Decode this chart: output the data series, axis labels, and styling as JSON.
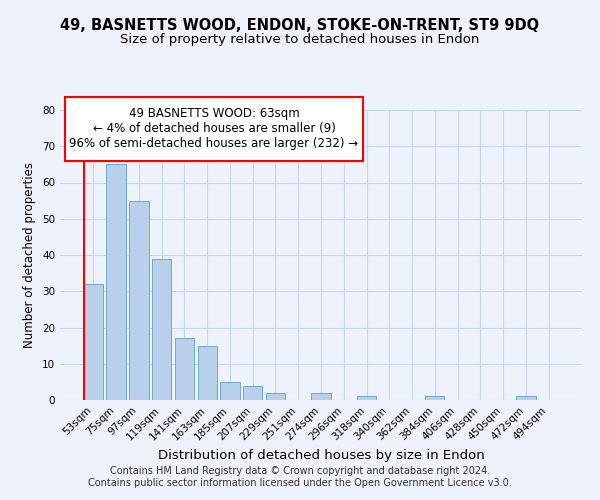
{
  "title": "49, BASNETTS WOOD, ENDON, STOKE-ON-TRENT, ST9 9DQ",
  "subtitle": "Size of property relative to detached houses in Endon",
  "xlabel": "Distribution of detached houses by size in Endon",
  "ylabel": "Number of detached properties",
  "bar_labels": [
    "53sqm",
    "75sqm",
    "97sqm",
    "119sqm",
    "141sqm",
    "163sqm",
    "185sqm",
    "207sqm",
    "229sqm",
    "251sqm",
    "274sqm",
    "296sqm",
    "318sqm",
    "340sqm",
    "362sqm",
    "384sqm",
    "406sqm",
    "428sqm",
    "450sqm",
    "472sqm",
    "494sqm"
  ],
  "bar_values": [
    32,
    65,
    55,
    39,
    17,
    15,
    5,
    4,
    2,
    0,
    2,
    0,
    1,
    0,
    0,
    1,
    0,
    0,
    0,
    1,
    0
  ],
  "bar_color": "#b8d0ea",
  "bar_edgecolor": "#6aaad4",
  "ylim": [
    0,
    80
  ],
  "yticks": [
    0,
    10,
    20,
    30,
    40,
    50,
    60,
    70,
    80
  ],
  "annotation_line1": "49 BASNETTS WOOD: 63sqm",
  "annotation_line2": "← 4% of detached houses are smaller (9)",
  "annotation_line3": "96% of semi-detached houses are larger (232) →",
  "footer_line1": "Contains HM Land Registry data © Crown copyright and database right 2024.",
  "footer_line2": "Contains public sector information licensed under the Open Government Licence v3.0.",
  "background_color": "#eef2fb",
  "plot_background_color": "#eef2fb",
  "grid_color": "#c5d5ed",
  "title_fontsize": 10.5,
  "subtitle_fontsize": 9.5,
  "xlabel_fontsize": 9.5,
  "ylabel_fontsize": 8.5,
  "tick_fontsize": 7.5,
  "annot_fontsize": 8.5,
  "footer_fontsize": 7
}
